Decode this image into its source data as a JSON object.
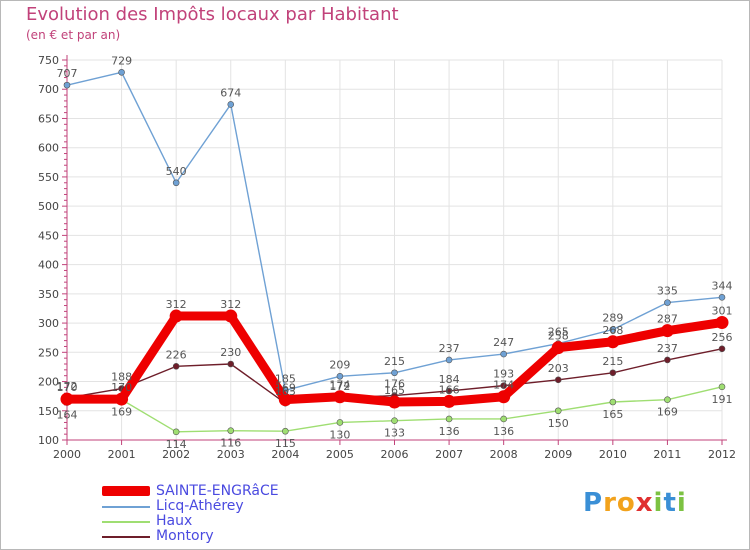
{
  "chart_data": {
    "type": "line",
    "title": "Evolution des Impôts locaux par Habitant",
    "subtitle": "(en € et par an)",
    "xlabel": "",
    "ylabel": "",
    "ylim": [
      100,
      750
    ],
    "ytick_step": 50,
    "grid": true,
    "legend_position": "bottom-left",
    "categories": [
      "2000",
      "2001",
      "2002",
      "2003",
      "2004",
      "2005",
      "2006",
      "2007",
      "2008",
      "2009",
      "2010",
      "2011",
      "2012"
    ],
    "series": [
      {
        "name": "SAINTE-ENGRâCE",
        "color": "#ee0000",
        "values": [
          170,
          170,
          312,
          312,
          169,
          174,
          165,
          166,
          174,
          258,
          268,
          287,
          301
        ]
      },
      {
        "name": "Licq-Athérey",
        "color": "#6fa1d4",
        "values": [
          707,
          729,
          540,
          674,
          185,
          209,
          215,
          237,
          247,
          265,
          289,
          335,
          344
        ]
      },
      {
        "name": "Haux",
        "color": "#9fde72",
        "values": [
          164,
          169,
          114,
          116,
          115,
          130,
          133,
          136,
          136,
          150,
          165,
          169,
          191
        ]
      },
      {
        "name": "Montory",
        "color": "#6e1e2a",
        "values": [
          172,
          188,
          226,
          230,
          163,
          172,
          176,
          184,
          193,
          203,
          215,
          237,
          256
        ]
      }
    ]
  },
  "legend": {
    "items": [
      {
        "label": "SAINTE-ENGRâCE"
      },
      {
        "label": "Licq-Athérey"
      },
      {
        "label": "Haux"
      },
      {
        "label": "Montory"
      }
    ]
  },
  "logo": {
    "letters": [
      "P",
      "r",
      "o",
      "x",
      "i",
      "t",
      "i"
    ],
    "colors": [
      "#3a8fd6",
      "#f2a21c",
      "#f2a21c",
      "#e03030",
      "#7cc242",
      "#3a8fd6",
      "#7cc242"
    ]
  }
}
